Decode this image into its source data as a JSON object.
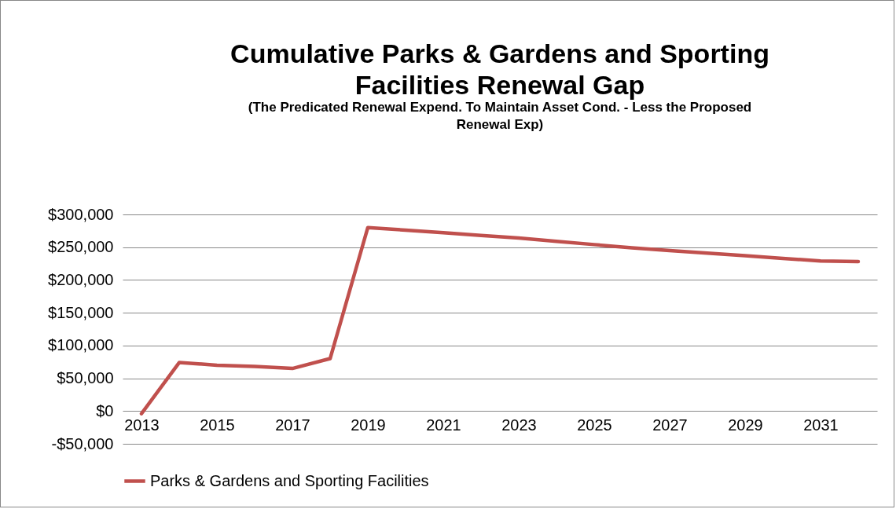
{
  "chart_data": {
    "type": "line",
    "title": "Cumulative Parks & Gardens and Sporting Facilities Renewal Gap",
    "subtitle": "(The Predicated Renewal Expend. To Maintain Asset Cond. - Less the Proposed Renewal Exp)",
    "categories": [
      "2013",
      null,
      "2015",
      null,
      "2017",
      null,
      "2019",
      null,
      "2021",
      null,
      "2023",
      null,
      "2025",
      null,
      "2027",
      null,
      "2029",
      null,
      "2031",
      null
    ],
    "series": [
      {
        "name": "Parks & Gardens and Sporting Facilities",
        "color": "#c0504d",
        "values": [
          -4000,
          74000,
          70000,
          68000,
          65000,
          80000,
          280000,
          276000,
          272000,
          268000,
          264000,
          259000,
          254000,
          249000,
          245000,
          241000,
          237000,
          233000,
          229000,
          228000
        ]
      }
    ],
    "ylim": [
      -50000,
      300000
    ],
    "yticks": [
      {
        "value": -50000,
        "label": "-$50,000"
      },
      {
        "value": 0,
        "label": "$0"
      },
      {
        "value": 50000,
        "label": "$50,000"
      },
      {
        "value": 100000,
        "label": "$100,000"
      },
      {
        "value": 150000,
        "label": "$150,000"
      },
      {
        "value": 200000,
        "label": "$200,000"
      },
      {
        "value": 250000,
        "label": "$250,000"
      },
      {
        "value": 300000,
        "label": "$300,000"
      }
    ],
    "grid": "y",
    "legend": "bottom",
    "marker": "none",
    "line_style": "solid"
  }
}
